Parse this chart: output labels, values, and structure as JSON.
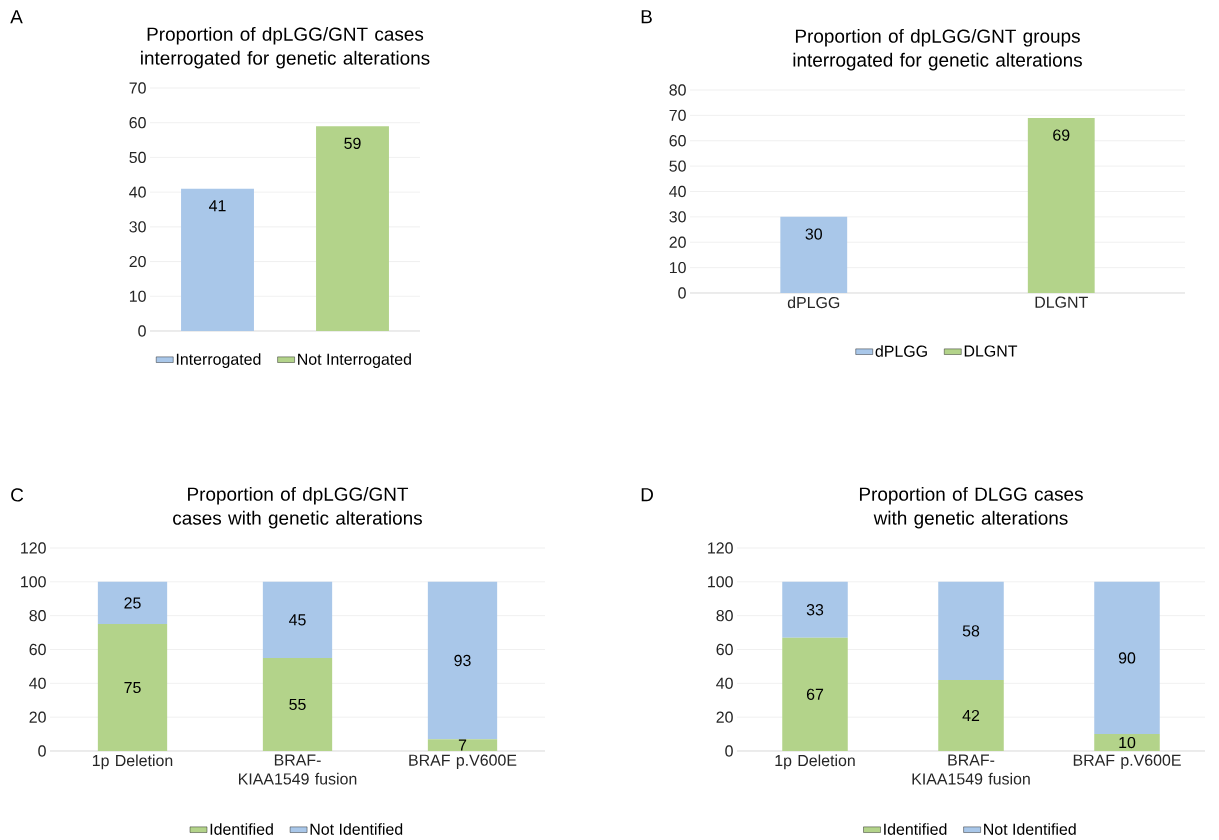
{
  "chart_data": [
    {
      "type": "bar",
      "title": "Proportion of dpLGG/GNT cases interrogated for genetic alterations",
      "annotations": [
        "A"
      ],
      "categories": [
        null
      ],
      "series": [
        {
          "name": "Interrogated",
          "color": "#a9c7e9",
          "values": [
            41
          ]
        },
        {
          "name": "Not Interrogated",
          "color": "#b3d38a",
          "values": [
            59
          ]
        }
      ],
      "ylim": [
        0,
        70
      ],
      "yticks": [
        0,
        10,
        20,
        30,
        40,
        50,
        60,
        70
      ],
      "grid": "y",
      "legend": "bottom",
      "data_labels": true
    },
    {
      "type": "bar",
      "title": "Proportion of dpLGG/GNT groups interrogated for genetic alterations",
      "annotations": [
        "B"
      ],
      "categories": [
        "dPLGG",
        "DLGNT"
      ],
      "series": [
        {
          "name": "dPLGG",
          "color": "#a9c7e9",
          "values": [
            30,
            null
          ]
        },
        {
          "name": "DLGNT",
          "color": "#b3d38a",
          "values": [
            null,
            69
          ]
        }
      ],
      "ylim": [
        0,
        80
      ],
      "yticks": [
        0,
        10,
        20,
        30,
        40,
        50,
        60,
        70,
        80
      ],
      "grid": "y",
      "legend": "bottom",
      "data_labels": true
    },
    {
      "type": "bar",
      "title": "Proportion of dpLGG/GNT cases with genetic alterations",
      "annotations": [
        "C"
      ],
      "categories": [
        "1p Deletion",
        "BRAF-KIAA1549 fusion",
        "BRAF p.V600E"
      ],
      "stacked": true,
      "series": [
        {
          "name": "Identified",
          "color": "#b3d38a",
          "values": [
            75,
            55,
            7
          ]
        },
        {
          "name": "Not Identified",
          "color": "#a9c7e9",
          "values": [
            25,
            45,
            93
          ]
        }
      ],
      "ylim": [
        0,
        120
      ],
      "yticks": [
        0,
        20,
        40,
        60,
        80,
        100,
        120
      ],
      "grid": "y",
      "legend": "bottom",
      "data_labels": true
    },
    {
      "type": "bar",
      "title": "Proportion of DLGG cases with genetic alterations",
      "annotations": [
        "D"
      ],
      "categories": [
        "1p Deletion",
        "BRAF-KIAA1549 fusion",
        "BRAF p.V600E"
      ],
      "stacked": true,
      "series": [
        {
          "name": "Identified",
          "color": "#b3d38a",
          "values": [
            67,
            42,
            10
          ]
        },
        {
          "name": "Not Identified",
          "color": "#a9c7e9",
          "values": [
            33,
            58,
            90
          ]
        }
      ],
      "ylim": [
        0,
        120
      ],
      "yticks": [
        0,
        20,
        40,
        60,
        80,
        100,
        120
      ],
      "grid": "y",
      "legend": "bottom",
      "data_labels": true
    }
  ]
}
